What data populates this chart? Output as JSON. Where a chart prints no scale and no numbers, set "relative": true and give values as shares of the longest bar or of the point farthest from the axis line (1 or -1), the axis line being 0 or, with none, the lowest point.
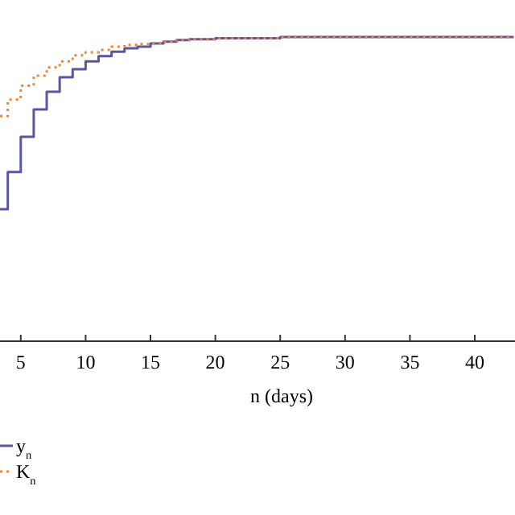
{
  "chart_data": {
    "type": "step",
    "xlabel": "n (days)",
    "relative": true,
    "xlim": [
      3.4,
      43.1
    ],
    "xticks": [
      5,
      10,
      15,
      20,
      25,
      30,
      35,
      40
    ],
    "legend": "bottom left",
    "grid": false,
    "series": [
      {
        "name": "y$_{n}$",
        "color": "#5a55a8",
        "line_style": "solid",
        "x": [
          3.4,
          4,
          5,
          6,
          7,
          8,
          9,
          10,
          11,
          12,
          13,
          14,
          15,
          16,
          17,
          18,
          20,
          25,
          43
        ],
        "values": [
          0.434,
          0.556,
          0.672,
          0.762,
          0.82,
          0.868,
          0.894,
          0.92,
          0.937,
          0.952,
          0.963,
          0.968,
          0.979,
          0.985,
          0.99,
          0.993,
          0.996,
          1,
          1
        ]
      },
      {
        "name": "K$_{n}$",
        "color": "#e8883a",
        "line_style": "dotted",
        "x": [
          3.4,
          4,
          5,
          6,
          7,
          8,
          9,
          10,
          11,
          12,
          13,
          14,
          15,
          16,
          17,
          18,
          20,
          25,
          43
        ],
        "values": [
          0.74,
          0.794,
          0.84,
          0.873,
          0.9,
          0.92,
          0.94,
          0.95,
          0.958,
          0.968,
          0.974,
          0.977,
          0.98,
          0.985,
          0.99,
          0.993,
          0.996,
          1,
          1
        ]
      }
    ]
  }
}
